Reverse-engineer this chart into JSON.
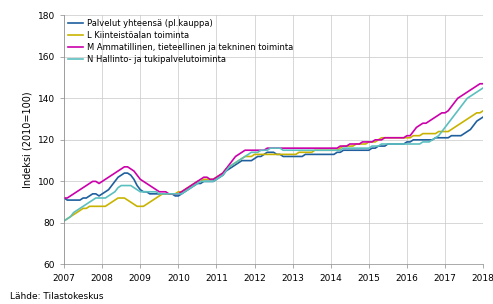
{
  "title": "",
  "ylabel": "Indeksi (2010=100)",
  "source": "Lähde: Tilastokeskus",
  "ylim": [
    60,
    180
  ],
  "yticks": [
    60,
    80,
    100,
    120,
    140,
    160,
    180
  ],
  "xstart": 2007,
  "xend": 2018,
  "xticks": [
    2007,
    2008,
    2009,
    2010,
    2011,
    2012,
    2013,
    2014,
    2015,
    2016,
    2017,
    2018
  ],
  "background_color": "#ffffff",
  "grid_color": "#c8c8c8",
  "series": [
    {
      "label": "Palvelut yhteensä (pl.kauppa)",
      "color": "#1f5f9e",
      "linewidth": 1.2,
      "x": [
        2007.0,
        2007.083,
        2007.167,
        2007.25,
        2007.333,
        2007.417,
        2007.5,
        2007.583,
        2007.667,
        2007.75,
        2007.833,
        2007.917,
        2008.0,
        2008.083,
        2008.167,
        2008.25,
        2008.333,
        2008.417,
        2008.5,
        2008.583,
        2008.667,
        2008.75,
        2008.833,
        2008.917,
        2009.0,
        2009.083,
        2009.167,
        2009.25,
        2009.333,
        2009.417,
        2009.5,
        2009.583,
        2009.667,
        2009.75,
        2009.833,
        2009.917,
        2010.0,
        2010.083,
        2010.167,
        2010.25,
        2010.333,
        2010.417,
        2010.5,
        2010.583,
        2010.667,
        2010.75,
        2010.833,
        2010.917,
        2011.0,
        2011.083,
        2011.167,
        2011.25,
        2011.333,
        2011.417,
        2011.5,
        2011.583,
        2011.667,
        2011.75,
        2011.833,
        2011.917,
        2012.0,
        2012.083,
        2012.167,
        2012.25,
        2012.333,
        2012.417,
        2012.5,
        2012.583,
        2012.667,
        2012.75,
        2012.833,
        2012.917,
        2013.0,
        2013.083,
        2013.167,
        2013.25,
        2013.333,
        2013.417,
        2013.5,
        2013.583,
        2013.667,
        2013.75,
        2013.833,
        2013.917,
        2014.0,
        2014.083,
        2014.167,
        2014.25,
        2014.333,
        2014.417,
        2014.5,
        2014.583,
        2014.667,
        2014.75,
        2014.833,
        2014.917,
        2015.0,
        2015.083,
        2015.167,
        2015.25,
        2015.333,
        2015.417,
        2015.5,
        2015.583,
        2015.667,
        2015.75,
        2015.833,
        2015.917,
        2016.0,
        2016.083,
        2016.167,
        2016.25,
        2016.333,
        2016.417,
        2016.5,
        2016.583,
        2016.667,
        2016.75,
        2016.833,
        2016.917,
        2017.0,
        2017.083,
        2017.167,
        2017.25,
        2017.333,
        2017.417,
        2017.5,
        2017.583,
        2017.667,
        2017.75,
        2017.833,
        2017.917,
        2018.0
      ],
      "y": [
        92,
        91,
        91,
        91,
        91,
        91,
        92,
        92,
        93,
        94,
        94,
        93,
        94,
        95,
        96,
        98,
        100,
        102,
        103,
        104,
        104,
        103,
        101,
        98,
        96,
        95,
        95,
        94,
        94,
        94,
        94,
        94,
        94,
        94,
        94,
        93,
        93,
        94,
        95,
        96,
        97,
        98,
        99,
        99,
        100,
        100,
        100,
        100,
        101,
        102,
        103,
        105,
        106,
        107,
        108,
        109,
        110,
        110,
        110,
        110,
        111,
        112,
        112,
        113,
        114,
        114,
        114,
        113,
        113,
        112,
        112,
        112,
        112,
        112,
        112,
        112,
        113,
        113,
        113,
        113,
        113,
        113,
        113,
        113,
        113,
        113,
        114,
        114,
        115,
        115,
        115,
        115,
        115,
        115,
        115,
        115,
        115,
        116,
        116,
        117,
        117,
        117,
        118,
        118,
        118,
        118,
        118,
        118,
        119,
        119,
        120,
        120,
        120,
        120,
        120,
        120,
        120,
        121,
        121,
        121,
        121,
        121,
        122,
        122,
        122,
        122,
        123,
        124,
        125,
        127,
        129,
        130,
        131
      ]
    },
    {
      "label": "L Kiinteistöalan toiminta",
      "color": "#c8b400",
      "linewidth": 1.2,
      "x": [
        2007.0,
        2007.083,
        2007.167,
        2007.25,
        2007.333,
        2007.417,
        2007.5,
        2007.583,
        2007.667,
        2007.75,
        2007.833,
        2007.917,
        2008.0,
        2008.083,
        2008.167,
        2008.25,
        2008.333,
        2008.417,
        2008.5,
        2008.583,
        2008.667,
        2008.75,
        2008.833,
        2008.917,
        2009.0,
        2009.083,
        2009.167,
        2009.25,
        2009.333,
        2009.417,
        2009.5,
        2009.583,
        2009.667,
        2009.75,
        2009.833,
        2009.917,
        2010.0,
        2010.083,
        2010.167,
        2010.25,
        2010.333,
        2010.417,
        2010.5,
        2010.583,
        2010.667,
        2010.75,
        2010.833,
        2010.917,
        2011.0,
        2011.083,
        2011.167,
        2011.25,
        2011.333,
        2011.417,
        2011.5,
        2011.583,
        2011.667,
        2011.75,
        2011.833,
        2011.917,
        2012.0,
        2012.083,
        2012.167,
        2012.25,
        2012.333,
        2012.417,
        2012.5,
        2012.583,
        2012.667,
        2012.75,
        2012.833,
        2012.917,
        2013.0,
        2013.083,
        2013.167,
        2013.25,
        2013.333,
        2013.417,
        2013.5,
        2013.583,
        2013.667,
        2013.75,
        2013.833,
        2013.917,
        2014.0,
        2014.083,
        2014.167,
        2014.25,
        2014.333,
        2014.417,
        2014.5,
        2014.583,
        2014.667,
        2014.75,
        2014.833,
        2014.917,
        2015.0,
        2015.083,
        2015.167,
        2015.25,
        2015.333,
        2015.417,
        2015.5,
        2015.583,
        2015.667,
        2015.75,
        2015.833,
        2015.917,
        2016.0,
        2016.083,
        2016.167,
        2016.25,
        2016.333,
        2016.417,
        2016.5,
        2016.583,
        2016.667,
        2016.75,
        2016.833,
        2016.917,
        2017.0,
        2017.083,
        2017.167,
        2017.25,
        2017.333,
        2017.417,
        2017.5,
        2017.583,
        2017.667,
        2017.75,
        2017.833,
        2017.917,
        2018.0
      ],
      "y": [
        81,
        82,
        83,
        84,
        85,
        86,
        87,
        87,
        88,
        88,
        88,
        88,
        88,
        88,
        89,
        90,
        91,
        92,
        92,
        92,
        91,
        90,
        89,
        88,
        88,
        88,
        89,
        90,
        91,
        92,
        93,
        94,
        94,
        94,
        94,
        94,
        95,
        95,
        96,
        97,
        98,
        99,
        100,
        100,
        101,
        101,
        101,
        101,
        102,
        103,
        104,
        106,
        107,
        108,
        109,
        110,
        111,
        112,
        112,
        112,
        113,
        113,
        113,
        113,
        113,
        113,
        113,
        113,
        113,
        113,
        113,
        113,
        113,
        113,
        114,
        114,
        114,
        114,
        114,
        115,
        115,
        115,
        115,
        115,
        115,
        115,
        115,
        116,
        117,
        117,
        117,
        117,
        118,
        118,
        118,
        118,
        119,
        119,
        119,
        120,
        121,
        121,
        121,
        121,
        121,
        121,
        121,
        121,
        121,
        121,
        122,
        122,
        122,
        123,
        123,
        123,
        123,
        123,
        124,
        124,
        124,
        124,
        125,
        126,
        127,
        128,
        129,
        130,
        131,
        132,
        133,
        133,
        134
      ]
    },
    {
      "label": "M Ammatillinen, tieteellinen ja tekninen toiminta",
      "color": "#cc00aa",
      "linewidth": 1.2,
      "x": [
        2007.0,
        2007.083,
        2007.167,
        2007.25,
        2007.333,
        2007.417,
        2007.5,
        2007.583,
        2007.667,
        2007.75,
        2007.833,
        2007.917,
        2008.0,
        2008.083,
        2008.167,
        2008.25,
        2008.333,
        2008.417,
        2008.5,
        2008.583,
        2008.667,
        2008.75,
        2008.833,
        2008.917,
        2009.0,
        2009.083,
        2009.167,
        2009.25,
        2009.333,
        2009.417,
        2009.5,
        2009.583,
        2009.667,
        2009.75,
        2009.833,
        2009.917,
        2010.0,
        2010.083,
        2010.167,
        2010.25,
        2010.333,
        2010.417,
        2010.5,
        2010.583,
        2010.667,
        2010.75,
        2010.833,
        2010.917,
        2011.0,
        2011.083,
        2011.167,
        2011.25,
        2011.333,
        2011.417,
        2011.5,
        2011.583,
        2011.667,
        2011.75,
        2011.833,
        2011.917,
        2012.0,
        2012.083,
        2012.167,
        2012.25,
        2012.333,
        2012.417,
        2012.5,
        2012.583,
        2012.667,
        2012.75,
        2012.833,
        2012.917,
        2013.0,
        2013.083,
        2013.167,
        2013.25,
        2013.333,
        2013.417,
        2013.5,
        2013.583,
        2013.667,
        2013.75,
        2013.833,
        2013.917,
        2014.0,
        2014.083,
        2014.167,
        2014.25,
        2014.333,
        2014.417,
        2014.5,
        2014.583,
        2014.667,
        2014.75,
        2014.833,
        2014.917,
        2015.0,
        2015.083,
        2015.167,
        2015.25,
        2015.333,
        2015.417,
        2015.5,
        2015.583,
        2015.667,
        2015.75,
        2015.833,
        2015.917,
        2016.0,
        2016.083,
        2016.167,
        2016.25,
        2016.333,
        2016.417,
        2016.5,
        2016.583,
        2016.667,
        2016.75,
        2016.833,
        2016.917,
        2017.0,
        2017.083,
        2017.167,
        2017.25,
        2017.333,
        2017.417,
        2017.5,
        2017.583,
        2017.667,
        2017.75,
        2017.833,
        2017.917,
        2018.0
      ],
      "y": [
        92,
        92,
        93,
        94,
        95,
        96,
        97,
        98,
        99,
        100,
        100,
        99,
        100,
        101,
        102,
        103,
        104,
        105,
        106,
        107,
        107,
        106,
        105,
        103,
        101,
        100,
        99,
        98,
        97,
        96,
        95,
        95,
        95,
        94,
        94,
        94,
        94,
        95,
        96,
        97,
        98,
        99,
        100,
        101,
        102,
        102,
        101,
        101,
        102,
        103,
        104,
        106,
        108,
        110,
        112,
        113,
        114,
        115,
        115,
        115,
        115,
        115,
        115,
        115,
        116,
        116,
        116,
        116,
        116,
        116,
        116,
        116,
        116,
        116,
        116,
        116,
        116,
        116,
        116,
        116,
        116,
        116,
        116,
        116,
        116,
        116,
        116,
        117,
        117,
        117,
        118,
        118,
        118,
        118,
        119,
        119,
        119,
        119,
        120,
        120,
        120,
        121,
        121,
        121,
        121,
        121,
        121,
        121,
        122,
        122,
        124,
        126,
        127,
        128,
        128,
        129,
        130,
        131,
        132,
        133,
        133,
        134,
        136,
        138,
        140,
        141,
        142,
        143,
        144,
        145,
        146,
        147,
        147
      ]
    },
    {
      "label": "N Hallinto- ja tukipalvelutoiminta",
      "color": "#5bbfbf",
      "linewidth": 1.2,
      "x": [
        2007.0,
        2007.083,
        2007.167,
        2007.25,
        2007.333,
        2007.417,
        2007.5,
        2007.583,
        2007.667,
        2007.75,
        2007.833,
        2007.917,
        2008.0,
        2008.083,
        2008.167,
        2008.25,
        2008.333,
        2008.417,
        2008.5,
        2008.583,
        2008.667,
        2008.75,
        2008.833,
        2008.917,
        2009.0,
        2009.083,
        2009.167,
        2009.25,
        2009.333,
        2009.417,
        2009.5,
        2009.583,
        2009.667,
        2009.75,
        2009.833,
        2009.917,
        2010.0,
        2010.083,
        2010.167,
        2010.25,
        2010.333,
        2010.417,
        2010.5,
        2010.583,
        2010.667,
        2010.75,
        2010.833,
        2010.917,
        2011.0,
        2011.083,
        2011.167,
        2011.25,
        2011.333,
        2011.417,
        2011.5,
        2011.583,
        2011.667,
        2011.75,
        2011.833,
        2011.917,
        2012.0,
        2012.083,
        2012.167,
        2012.25,
        2012.333,
        2012.417,
        2012.5,
        2012.583,
        2012.667,
        2012.75,
        2012.833,
        2012.917,
        2013.0,
        2013.083,
        2013.167,
        2013.25,
        2013.333,
        2013.417,
        2013.5,
        2013.583,
        2013.667,
        2013.75,
        2013.833,
        2013.917,
        2014.0,
        2014.083,
        2014.167,
        2014.25,
        2014.333,
        2014.417,
        2014.5,
        2014.583,
        2014.667,
        2014.75,
        2014.833,
        2014.917,
        2015.0,
        2015.083,
        2015.167,
        2015.25,
        2015.333,
        2015.417,
        2015.5,
        2015.583,
        2015.667,
        2015.75,
        2015.833,
        2015.917,
        2016.0,
        2016.083,
        2016.167,
        2016.25,
        2016.333,
        2016.417,
        2016.5,
        2016.583,
        2016.667,
        2016.75,
        2016.833,
        2016.917,
        2017.0,
        2017.083,
        2017.167,
        2017.25,
        2017.333,
        2017.417,
        2017.5,
        2017.583,
        2017.667,
        2017.75,
        2017.833,
        2017.917,
        2018.0
      ],
      "y": [
        81,
        82,
        83,
        85,
        86,
        87,
        88,
        89,
        90,
        91,
        92,
        92,
        92,
        92,
        93,
        94,
        95,
        97,
        98,
        98,
        98,
        98,
        97,
        96,
        95,
        95,
        95,
        95,
        95,
        95,
        94,
        94,
        94,
        94,
        94,
        94,
        94,
        94,
        95,
        96,
        97,
        98,
        99,
        100,
        100,
        100,
        100,
        100,
        101,
        102,
        103,
        105,
        107,
        108,
        109,
        110,
        111,
        112,
        113,
        114,
        114,
        114,
        115,
        115,
        115,
        116,
        116,
        116,
        116,
        115,
        115,
        115,
        115,
        115,
        115,
        115,
        115,
        115,
        115,
        115,
        115,
        115,
        115,
        115,
        115,
        115,
        115,
        115,
        116,
        116,
        116,
        116,
        116,
        116,
        116,
        116,
        116,
        117,
        117,
        117,
        118,
        118,
        118,
        118,
        118,
        118,
        118,
        118,
        118,
        118,
        118,
        118,
        118,
        119,
        119,
        119,
        120,
        121,
        122,
        124,
        126,
        128,
        130,
        132,
        134,
        136,
        138,
        140,
        141,
        142,
        143,
        144,
        145
      ]
    }
  ]
}
